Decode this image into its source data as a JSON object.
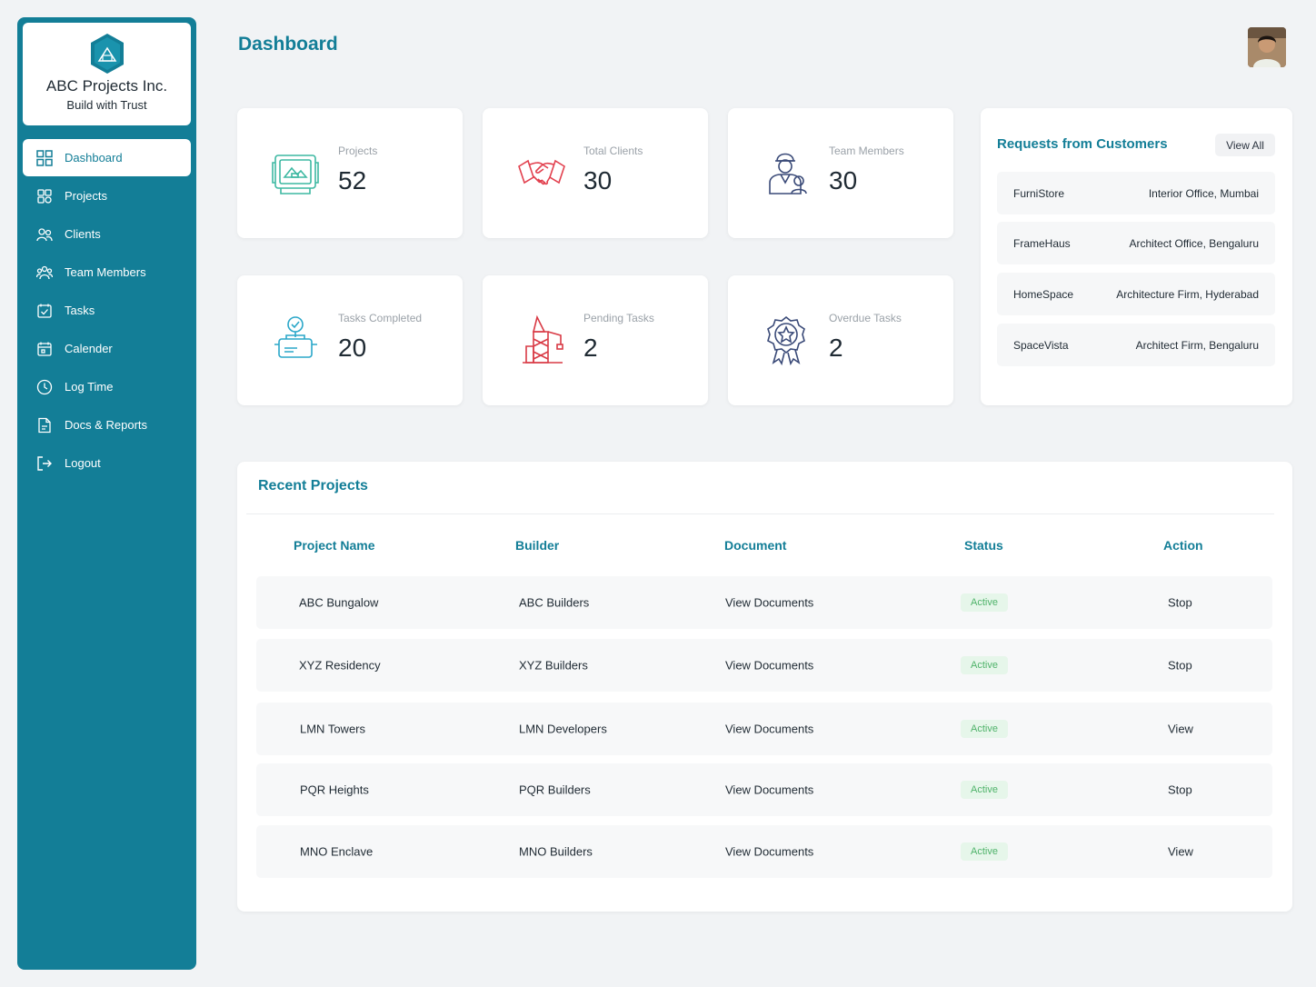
{
  "brand": {
    "name": "ABC Projects Inc.",
    "tagline": "Build with Trust"
  },
  "nav": [
    {
      "label": "Dashboard",
      "icon": "grid-icon"
    },
    {
      "label": "Projects",
      "icon": "projects-icon"
    },
    {
      "label": "Clients",
      "icon": "clients-icon"
    },
    {
      "label": "Team Members",
      "icon": "team-icon"
    },
    {
      "label": "Tasks",
      "icon": "tasks-icon"
    },
    {
      "label": "Calender",
      "icon": "calendar-icon"
    },
    {
      "label": "Log Time",
      "icon": "clock-icon"
    },
    {
      "label": "Docs & Reports",
      "icon": "document-icon"
    },
    {
      "label": "Logout",
      "icon": "logout-icon"
    }
  ],
  "header": {
    "title": "Dashboard"
  },
  "stats": [
    {
      "label": "Projects",
      "value": "52",
      "icon": "blueprint-icon"
    },
    {
      "label": "Total Clients",
      "value": "30",
      "icon": "handshake-icon"
    },
    {
      "label": "Team Members",
      "value": "30",
      "icon": "worker-icon"
    },
    {
      "label": "Tasks Completed",
      "value": "20",
      "icon": "completed-task-icon"
    },
    {
      "label": "Pending Tasks",
      "value": "2",
      "icon": "crane-icon"
    },
    {
      "label": "Overdue Tasks",
      "value": "2",
      "icon": "star-badge-icon"
    }
  ],
  "requests": {
    "title": "Requests from Customers",
    "view_all": "View All",
    "items": [
      {
        "name": "FurniStore",
        "detail": "Interior Office, Mumbai"
      },
      {
        "name": "FrameHaus",
        "detail": "Architect Office, Bengaluru"
      },
      {
        "name": "HomeSpace",
        "detail": "Architecture Firm, Hyderabad"
      },
      {
        "name": "SpaceVista",
        "detail": "Architect Firm, Bengaluru"
      }
    ]
  },
  "recent": {
    "title": "Recent Projects",
    "columns": [
      "Project Name",
      "Builder",
      "Document",
      "Status",
      "Action"
    ],
    "rows": [
      {
        "name": "ABC Bungalow",
        "builder": "ABC Builders",
        "document": "View Documents",
        "status": "Active",
        "action": "Stop"
      },
      {
        "name": "XYZ Residency",
        "builder": "XYZ Builders",
        "document": "View Documents",
        "status": "Active",
        "action": "Stop"
      },
      {
        "name": "LMN Towers",
        "builder": "LMN Developers",
        "document": "View Documents",
        "status": "Active",
        "action": "View"
      },
      {
        "name": "PQR Heights",
        "builder": "PQR Builders",
        "document": "View Documents",
        "status": "Active",
        "action": "Stop"
      },
      {
        "name": "MNO Enclave",
        "builder": "MNO Builders",
        "document": "View Documents",
        "status": "Active",
        "action": "View"
      }
    ]
  },
  "colors": {
    "primary": "#137e97",
    "active_badge_bg": "#e6f6ea",
    "active_badge_text": "#4fb36a"
  }
}
